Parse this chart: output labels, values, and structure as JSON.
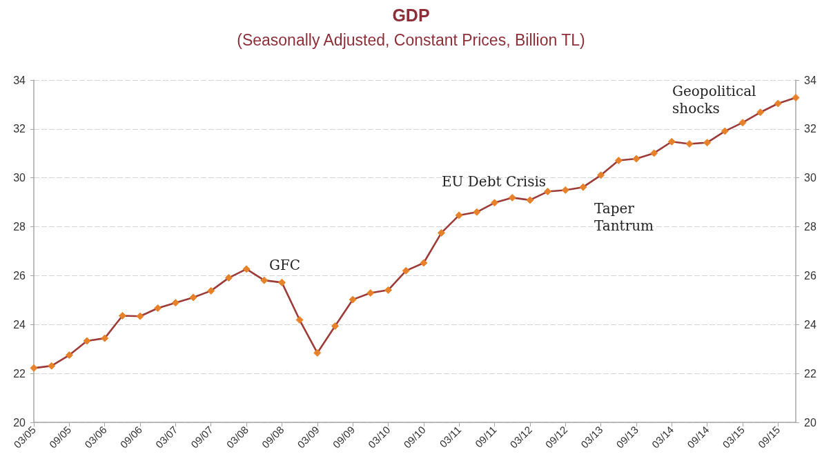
{
  "chart_data": {
    "type": "line",
    "title": "GDP",
    "subtitle": "(Seasonally Adjusted, Constant Prices, Billion TL)",
    "categories": [
      "03/05",
      null,
      "09/05",
      null,
      "03/06",
      null,
      "09/06",
      null,
      "03/07",
      null,
      "09/07",
      null,
      "03/08",
      null,
      "09/08",
      null,
      "03/09",
      null,
      "09/09",
      null,
      "03/10",
      null,
      "09/10",
      null,
      "03/11",
      null,
      "09/11",
      null,
      "03/12",
      null,
      "09/12",
      null,
      "03/13",
      null,
      "09/13",
      null,
      "03/14",
      null,
      "09/14",
      null,
      "03/15",
      null,
      "09/15",
      null
    ],
    "series": [
      {
        "color": "#9c3b37",
        "colors": [
          "#e8822a",
          "#e8822a",
          "#e8822a",
          "#e8822a",
          "#e8822a",
          "#e8822a",
          "#e8822a",
          "#e8822a",
          "#e8822a",
          "#e8822a",
          "#e8822a",
          "#e8822a",
          "#e8822a",
          "#e8822a",
          "#e8822a",
          "#e8822a",
          "#e8822a",
          "#e8822a",
          "#e8822a",
          "#e8822a",
          "#e8822a",
          "#e8822a",
          "#e8822a",
          "#e8822a",
          "#e8822a",
          "#e8822a",
          "#e8822a",
          "#e8822a",
          "#e8822a",
          "#e8822a",
          "#e8822a",
          "#e8822a",
          "#e8822a",
          "#e8822a",
          "#e8822a",
          "#e8822a",
          "#e8822a",
          "#e8822a",
          "#e8822a",
          "#e8822a",
          "#e8822a",
          "#e8822a",
          "#e8822a",
          "#e8822a"
        ],
        "values": [
          22.22,
          22.31,
          22.75,
          23.33,
          23.44,
          24.36,
          24.34,
          24.67,
          24.89,
          25.11,
          25.38,
          25.91,
          26.27,
          25.81,
          25.72,
          24.19,
          22.84,
          23.94,
          25.02,
          25.29,
          25.41,
          26.2,
          26.52,
          27.75,
          28.47,
          28.6,
          28.98,
          29.19,
          29.09,
          29.44,
          29.5,
          29.62,
          30.11,
          30.71,
          30.78,
          31.01,
          31.48,
          31.39,
          31.44,
          31.91,
          32.26,
          32.68,
          33.04,
          33.28
        ]
      }
    ],
    "ylim": [
      20,
      34
    ],
    "yticks": [
      20,
      22,
      24,
      26,
      28,
      30,
      32,
      34
    ],
    "y2lim": [
      20,
      34
    ],
    "y2ticks": [
      20,
      22,
      24,
      26,
      28,
      30,
      32,
      34
    ],
    "grid": "y",
    "marker": "diamond",
    "line_style": "solid",
    "annotations": [
      "GFC",
      "EU Debt Crisis",
      "Taper\nTantrum",
      "Geopolitical\nshocks"
    ]
  }
}
